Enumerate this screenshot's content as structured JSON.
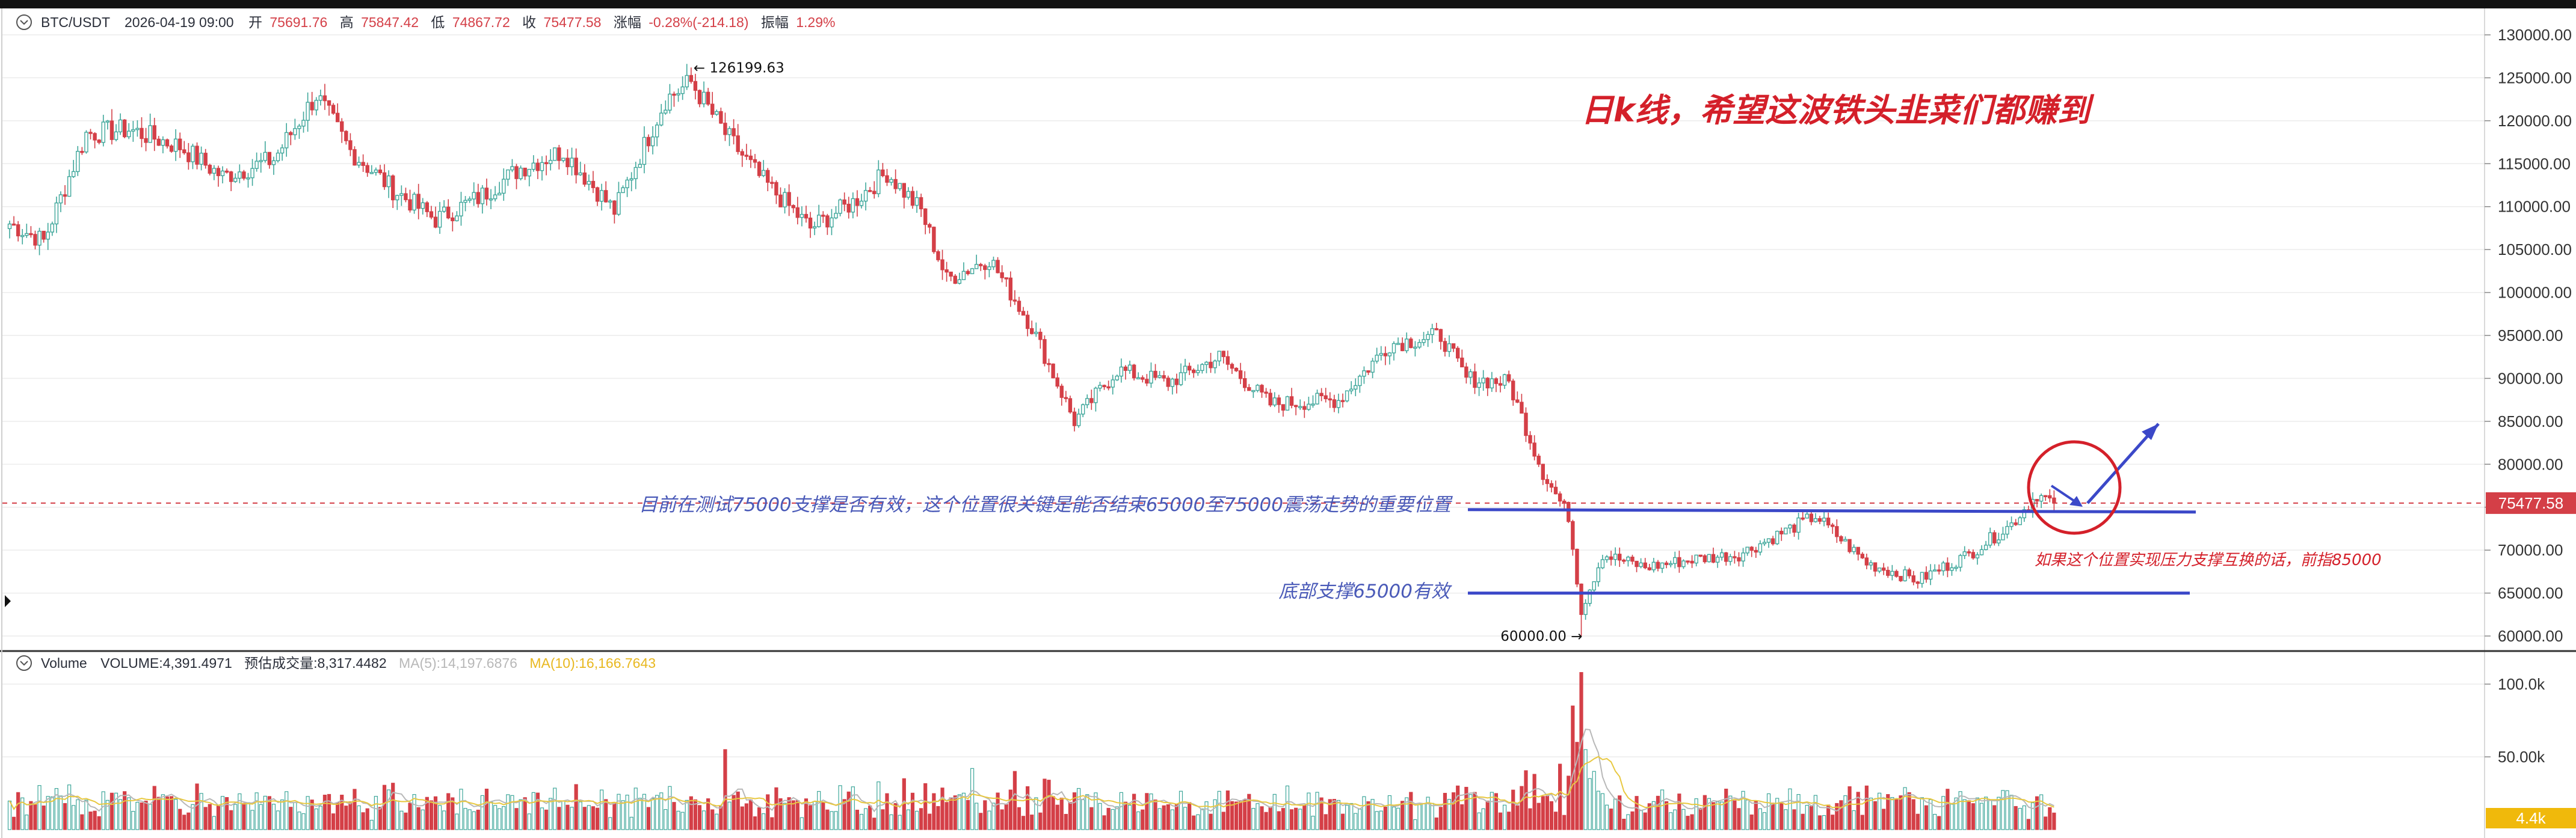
{
  "header": {
    "symbol": "BTC/USDT",
    "datetime": "2026-04-19 09:00",
    "open_label": "开",
    "open_value": "75691.76",
    "high_label": "高",
    "high_value": "75847.42",
    "low_label": "低",
    "low_value": "74867.72",
    "close_label": "收",
    "close_value": "75477.58",
    "change_label": "涨幅",
    "change_value": "-0.28%(-214.18)",
    "amplitude_label": "振幅",
    "amplitude_value": "1.29%"
  },
  "volume_header": {
    "title": "Volume",
    "volume_text": "VOLUME:4,391.4971",
    "estimate_text": "预估成交量:8,317.4482",
    "ma5_text": "MA(5):14,197.6876",
    "ma10_text": "MA(10):16,166.7643"
  },
  "price_tag": "75477.58",
  "volume_tag": "4.4k",
  "annotations": {
    "title": "日k线，希望这波铁头韭菜们都赚到",
    "resistance_note": "目前在测试75000支撑是否有效，这个位置很关键是能否结束65000至75000震荡走势的重要位置",
    "support_note": "底部支撑65000有效",
    "target_note": "如果这个位置实现压力支撑互换的话，前指85000",
    "high_marker": "← 126199.63",
    "low_marker": "60000.00 →"
  },
  "colors": {
    "up": "#3fa79b",
    "down": "#d43f47",
    "drawing": "#3b48c8",
    "circle": "#d4202a",
    "ma5": "#b8b8b8",
    "ma10": "#e8c840"
  },
  "chart_data": {
    "type": "candlestick",
    "price_axis": {
      "min": 60000,
      "max": 130000,
      "ticks": [
        "130000.00",
        "125000.00",
        "120000.00",
        "115000.00",
        "110000.00",
        "105000.00",
        "100000.00",
        "95000.00",
        "90000.00",
        "85000.00",
        "80000.00",
        "75000.00",
        "70000.00",
        "65000.00",
        "60000.00"
      ]
    },
    "volume_axis": {
      "min": 0,
      "max": 100000,
      "ticks": [
        {
          "value": 100000,
          "label": "100.0k"
        },
        {
          "value": 50000,
          "label": "50.00k"
        }
      ]
    },
    "anchors": [
      {
        "i": 0,
        "p": 108000
      },
      {
        "i": 8,
        "p": 106000
      },
      {
        "i": 18,
        "p": 118500
      },
      {
        "i": 28,
        "p": 119000
      },
      {
        "i": 40,
        "p": 117000
      },
      {
        "i": 50,
        "p": 113500
      },
      {
        "i": 62,
        "p": 115500
      },
      {
        "i": 72,
        "p": 123000
      },
      {
        "i": 80,
        "p": 116500
      },
      {
        "i": 90,
        "p": 112000
      },
      {
        "i": 100,
        "p": 108500
      },
      {
        "i": 110,
        "p": 111000
      },
      {
        "i": 120,
        "p": 114500
      },
      {
        "i": 130,
        "p": 116500
      },
      {
        "i": 142,
        "p": 109500
      },
      {
        "i": 154,
        "p": 122500
      },
      {
        "i": 160,
        "p": 124500
      },
      {
        "i": 168,
        "p": 118500
      },
      {
        "i": 176,
        "p": 113500
      },
      {
        "i": 188,
        "p": 107500
      },
      {
        "i": 198,
        "p": 110500
      },
      {
        "i": 206,
        "p": 114000
      },
      {
        "i": 214,
        "p": 109500
      },
      {
        "i": 220,
        "p": 101500
      },
      {
        "i": 230,
        "p": 104000
      },
      {
        "i": 240,
        "p": 96000
      },
      {
        "i": 250,
        "p": 85000
      },
      {
        "i": 260,
        "p": 91000
      },
      {
        "i": 272,
        "p": 89500
      },
      {
        "i": 284,
        "p": 92500
      },
      {
        "i": 296,
        "p": 87000
      },
      {
        "i": 312,
        "p": 87500
      },
      {
        "i": 324,
        "p": 94000
      },
      {
        "i": 336,
        "p": 95000
      },
      {
        "i": 342,
        "p": 90000
      },
      {
        "i": 352,
        "p": 89500
      },
      {
        "i": 360,
        "p": 79000
      },
      {
        "i": 366,
        "p": 74000
      },
      {
        "i": 369,
        "p": 63000
      },
      {
        "i": 374,
        "p": 69500
      },
      {
        "i": 384,
        "p": 68000
      },
      {
        "i": 396,
        "p": 69000
      },
      {
        "i": 406,
        "p": 69500
      },
      {
        "i": 418,
        "p": 72500
      },
      {
        "i": 424,
        "p": 74000
      },
      {
        "i": 436,
        "p": 68500
      },
      {
        "i": 448,
        "p": 66500
      },
      {
        "i": 460,
        "p": 69500
      },
      {
        "i": 470,
        "p": 73000
      },
      {
        "i": 476,
        "p": 76500
      },
      {
        "i": 480,
        "p": 75500
      }
    ],
    "extremes": {
      "high_index": 160,
      "high": 126199.63,
      "low_index": 369,
      "low": 60000.0
    },
    "volume_spikes": [
      {
        "i": 168,
        "v": 55000
      },
      {
        "i": 210,
        "v": 35000
      },
      {
        "i": 226,
        "v": 42000
      },
      {
        "i": 236,
        "v": 40000
      },
      {
        "i": 244,
        "v": 34000
      },
      {
        "i": 300,
        "v": 30000
      },
      {
        "i": 340,
        "v": 30000
      },
      {
        "i": 358,
        "v": 38000
      },
      {
        "i": 364,
        "v": 45000
      },
      {
        "i": 367,
        "v": 85000
      },
      {
        "i": 368,
        "v": 60000
      },
      {
        "i": 369,
        "v": 108000
      },
      {
        "i": 370,
        "v": 55000
      },
      {
        "i": 372,
        "v": 40000
      },
      {
        "i": 418,
        "v": 28000
      },
      {
        "i": 436,
        "v": 30000
      }
    ],
    "levels": [
      75000,
      65000
    ],
    "current_price": 75477.58
  }
}
